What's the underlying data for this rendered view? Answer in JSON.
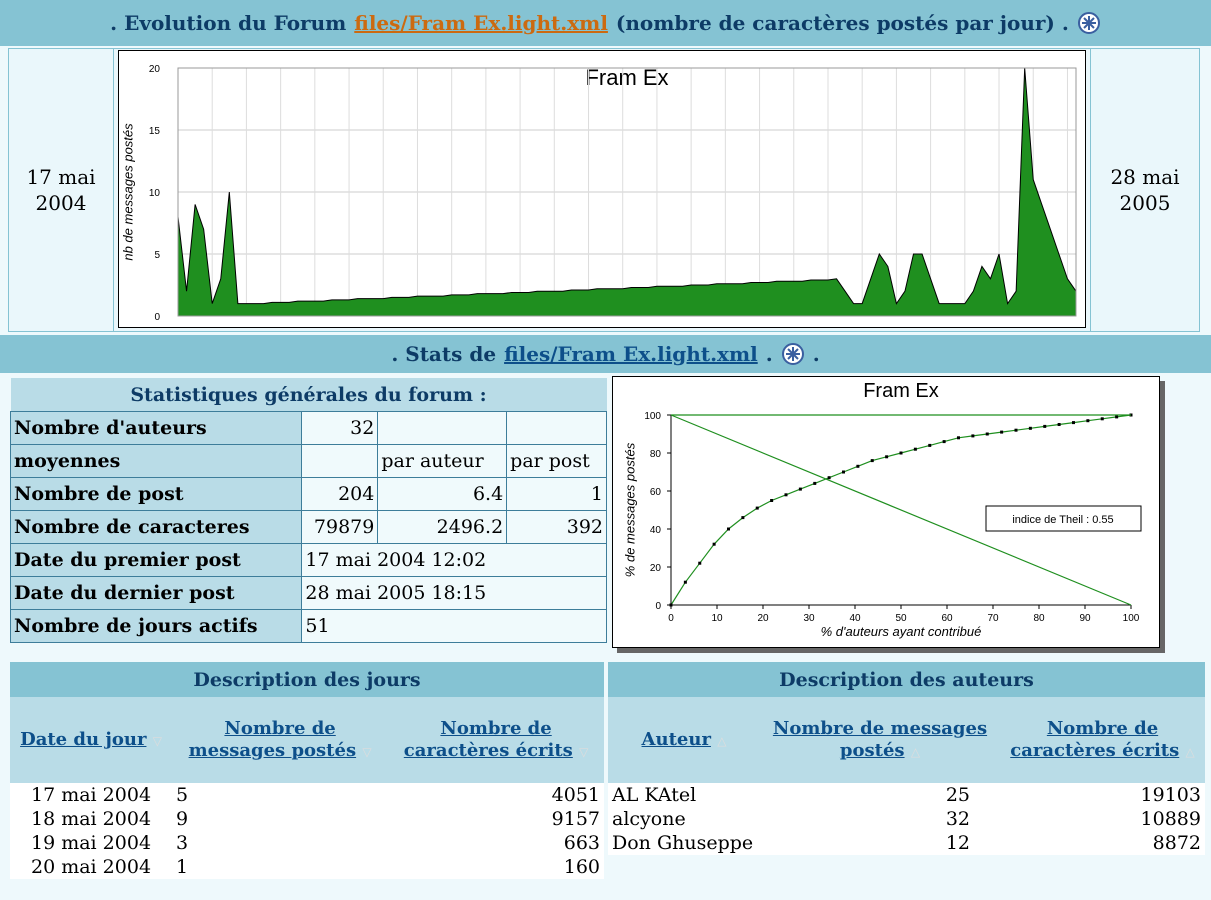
{
  "header": {
    "prefix": ". Evolution du Forum",
    "link": "files/Fram Ex.light.xml",
    "suffix": "(nombre de caractères postés par jour) ."
  },
  "period": {
    "start": "17 mai 2004",
    "end": "28 mai 2005"
  },
  "chart_data": [
    {
      "type": "area",
      "title": "Fram Ex",
      "y_label": "nb de messages postés",
      "color": "#1f8f1f",
      "grid": true,
      "ylim": [
        0,
        20
      ],
      "yticks": [
        0,
        5,
        10,
        15,
        20
      ],
      "values": [
        8,
        2,
        9,
        7,
        1,
        3,
        10,
        1,
        1.0,
        1.0,
        1.0,
        1.1,
        1.1,
        1.1,
        1.2,
        1.2,
        1.2,
        1.2,
        1.3,
        1.3,
        1.3,
        1.4,
        1.4,
        1.4,
        1.4,
        1.5,
        1.5,
        1.5,
        1.6,
        1.6,
        1.6,
        1.6,
        1.7,
        1.7,
        1.7,
        1.8,
        1.8,
        1.8,
        1.8,
        1.9,
        1.9,
        1.9,
        2.0,
        2.0,
        2.0,
        2.0,
        2.1,
        2.1,
        2.1,
        2.2,
        2.2,
        2.2,
        2.2,
        2.3,
        2.3,
        2.3,
        2.4,
        2.4,
        2.4,
        2.4,
        2.5,
        2.5,
        2.5,
        2.6,
        2.6,
        2.6,
        2.6,
        2.7,
        2.7,
        2.7,
        2.8,
        2.8,
        2.8,
        2.8,
        2.9,
        2.9,
        2.9,
        3.0,
        2,
        1,
        1,
        3,
        5,
        4,
        1,
        2,
        5,
        5,
        3,
        1,
        1,
        1,
        1,
        2,
        4,
        3,
        5,
        1,
        2,
        20,
        11,
        9,
        7,
        5,
        3,
        2
      ]
    },
    {
      "type": "line",
      "title": "Fram Ex",
      "x_label": "% d'auteurs ayant contribué",
      "y_label": "% de messages postés",
      "annotation": "indice de Theil : 0.55",
      "grid": false,
      "xlim": [
        0,
        100
      ],
      "ylim": [
        0,
        100
      ],
      "xticks": [
        0,
        10,
        20,
        30,
        40,
        50,
        60,
        70,
        80,
        90,
        100
      ],
      "yticks": [
        0,
        20,
        40,
        60,
        80,
        100
      ],
      "series": [
        {
          "color": "#1f8f1f",
          "markers": true,
          "x": [
            0,
            3.125,
            6.25,
            9.375,
            12.5,
            15.625,
            18.75,
            21.875,
            25,
            28.125,
            31.25,
            34.375,
            37.5,
            40.625,
            43.75,
            46.875,
            50,
            53.125,
            56.25,
            59.375,
            62.5,
            65.625,
            68.75,
            71.875,
            75,
            78.125,
            81.25,
            84.375,
            87.5,
            90.625,
            93.75,
            96.875,
            100
          ],
          "values": [
            0,
            12,
            22,
            32,
            40,
            46,
            51,
            55,
            58,
            61,
            64,
            67,
            70,
            73,
            76,
            78,
            80,
            82,
            84,
            86,
            88,
            89,
            90,
            91,
            92,
            93,
            94,
            95,
            96,
            97,
            98,
            99,
            100
          ]
        },
        {
          "color": "#1f8f1f",
          "markers": false,
          "x": [
            0,
            100
          ],
          "values": [
            100,
            0
          ]
        },
        {
          "color": "#1f8f1f",
          "markers": false,
          "x": [
            0,
            100
          ],
          "values": [
            100,
            100
          ]
        }
      ]
    }
  ],
  "stats_header": {
    "prefix": ". Stats de",
    "link": "files/Fram Ex.light.xml",
    "suffix": "."
  },
  "general": {
    "title": "Statistiques générales du forum :",
    "rows": [
      [
        "Nombre d'auteurs",
        32
      ],
      [
        "moyennes",
        "par auteur",
        "par post"
      ],
      [
        "Nombre de post",
        204,
        6.4,
        1
      ],
      [
        "Nombre de caracteres",
        79879,
        2496.2,
        392
      ],
      [
        "Date du premier post",
        "17 mai 2004 12:02"
      ],
      [
        "Date du dernier post",
        "28 mai 2005 18:15"
      ],
      [
        "Nombre de jours actifs",
        51
      ]
    ]
  },
  "days": {
    "title": "Description des jours",
    "columns": [
      "Date du jour",
      "Nombre de messages postés",
      "Nombre de caractères écrits"
    ],
    "rows": [
      [
        "17 mai 2004",
        5,
        4051
      ],
      [
        "18 mai 2004",
        9,
        9157
      ],
      [
        "19 mai 2004",
        3,
        663
      ],
      [
        "20 mai 2004",
        1,
        160
      ]
    ]
  },
  "authors": {
    "title": "Description des auteurs",
    "columns": [
      "Auteur",
      "Nombre de messages postés",
      "Nombre de caractères écrits"
    ],
    "rows": [
      [
        "AL KAtel",
        25,
        19103
      ],
      [
        "alcyone",
        32,
        10889
      ],
      [
        "Don Ghuseppe",
        12,
        8872
      ]
    ]
  }
}
